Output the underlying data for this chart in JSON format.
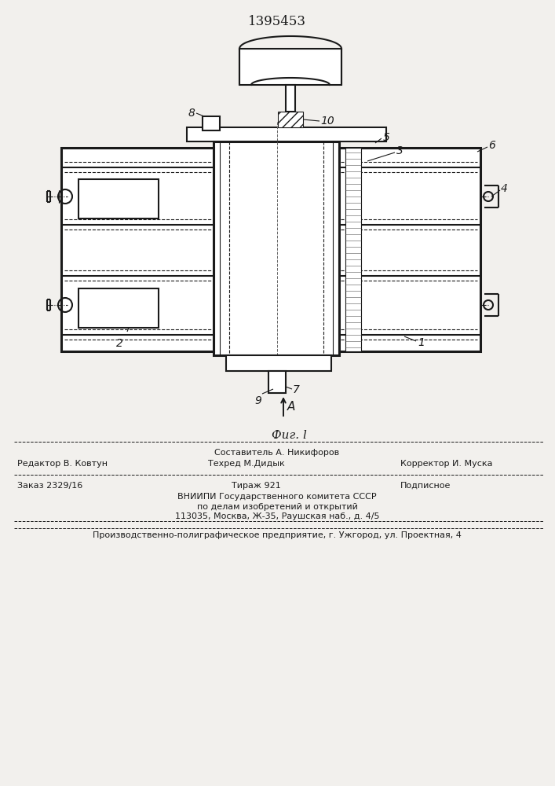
{
  "title": "1395453",
  "fig_label": "Фиг. l",
  "background_color": "#f2f0ed",
  "line_color": "#1a1a1a",
  "footer": {
    "sestavitel": "Составитель А. Никифоров",
    "redaktor": "Редактор В. Ковтун",
    "tehred": "Техред М.Дидык",
    "korrektor": "Корректор И. Муска",
    "zakaz": "Заказ 2329/16",
    "tirazh": "Тираж 921",
    "podpisnoe": "Подписное",
    "vniipи": "ВНИИПИ Государственного комитета СССР",
    "po_delam": "по делам изобретений и открытий",
    "address": "113035, Москва, Ж-35, Раушская наб., д. 4/5",
    "proizv": "Производственно-полиграфическое предприятие, г. Ужгород, ул. Проектная, 4"
  }
}
